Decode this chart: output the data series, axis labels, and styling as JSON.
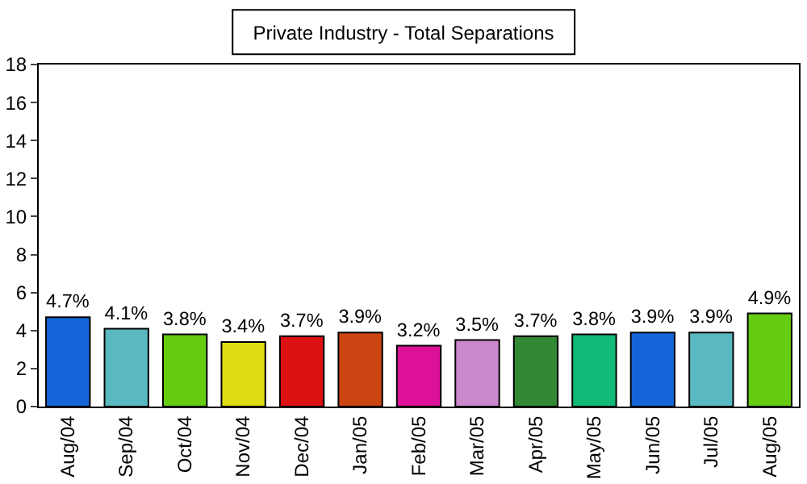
{
  "chart_data": {
    "type": "bar",
    "title": "Private Industry - Total Separations",
    "categories": [
      "Aug/04",
      "Sep/04",
      "Oct/04",
      "Nov/04",
      "Dec/04",
      "Jan/05",
      "Feb/05",
      "Mar/05",
      "Apr/05",
      "May/05",
      "Jun/05",
      "Jul/05",
      "Aug/05"
    ],
    "values": [
      4.7,
      4.1,
      3.8,
      3.4,
      3.7,
      3.9,
      3.2,
      3.5,
      3.7,
      3.8,
      3.9,
      3.9,
      4.9
    ],
    "value_labels": [
      "4.7%",
      "4.1%",
      "3.8%",
      "3.4%",
      "3.7%",
      "3.9%",
      "3.2%",
      "3.5%",
      "3.7%",
      "3.8%",
      "3.9%",
      "3.9%",
      "4.9%"
    ],
    "colors": [
      "#1466d8",
      "#5ab8c0",
      "#66cc11",
      "#dddd11",
      "#dd1111",
      "#cc4411",
      "#dd1199",
      "#cc88cc",
      "#338833",
      "#11bb77",
      "#1466d8",
      "#5ab8c0",
      "#66cc11"
    ],
    "ylim": [
      0,
      18
    ],
    "yticks": [
      0,
      2,
      4,
      6,
      8,
      10,
      12,
      14,
      16,
      18
    ]
  }
}
